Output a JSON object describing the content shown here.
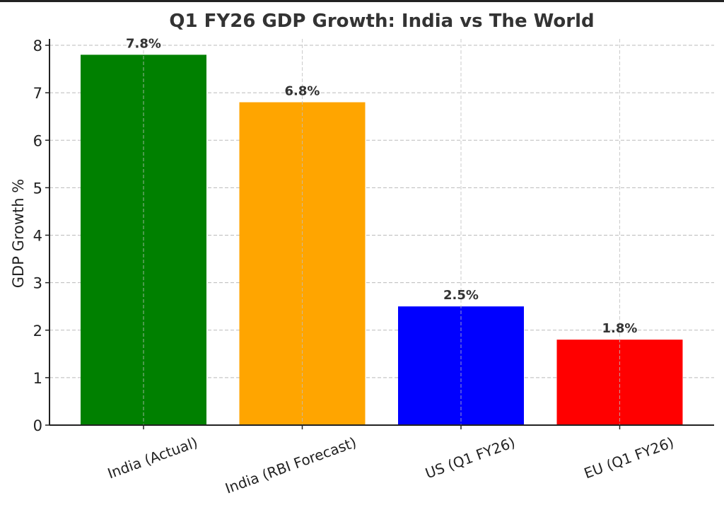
{
  "chart_data": {
    "type": "bar",
    "title": "Q1 FY26 GDP Growth: India vs The World",
    "xlabel": "",
    "ylabel": "GDP Growth %",
    "categories": [
      "India (Actual)",
      "India (RBI Forecast)",
      "US (Q1 FY26)",
      "EU (Q1 FY26)"
    ],
    "values": [
      7.8,
      6.8,
      2.5,
      1.8
    ],
    "data_labels": [
      "7.8%",
      "6.8%",
      "2.5%",
      "1.8%"
    ],
    "colors": [
      "#008000",
      "#FFA500",
      "#0000FF",
      "#FF0000"
    ],
    "ylim": [
      0,
      8
    ],
    "yticks": [
      0,
      1,
      2,
      3,
      4,
      5,
      6,
      7,
      8
    ],
    "grid": true
  }
}
